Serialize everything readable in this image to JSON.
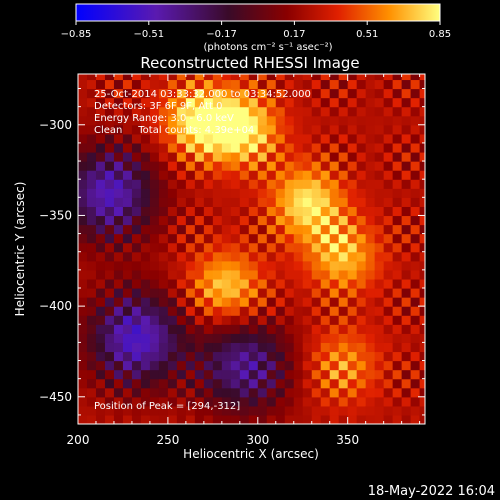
{
  "chart_data": {
    "type": "heatmap",
    "title": "Reconstructed RHESSI Image",
    "xlabel": "Heliocentric X (arcsec)",
    "ylabel": "Heliocentric Y (arcsec)",
    "xlim": [
      200,
      393
    ],
    "ylim": [
      -465,
      -272
    ],
    "x_ticks": [
      200,
      250,
      300,
      350
    ],
    "y_ticks": [
      -300,
      -350,
      -400,
      -450
    ],
    "x_tick_labels": [
      "200",
      "250",
      "300",
      "350"
    ],
    "y_tick_labels": [
      "−300",
      "−350",
      "−400",
      "−450"
    ],
    "colorbar": {
      "range": [
        -0.85,
        0.85
      ],
      "ticks": [
        -0.85,
        -0.51,
        -0.17,
        0.17,
        0.51,
        0.85
      ],
      "tick_labels": [
        "−0.85",
        "−0.51",
        "−0.17",
        "0.17",
        "0.51",
        "0.85"
      ],
      "units_label": "(photons cm⁻² s⁻¹ asec⁻²)"
    },
    "annotations": [
      "25-Oct-2014 03:33:32.000 to 03:34:52.000",
      "Detectors: 3F 6F 9F, Att 0",
      "Energy Range: 3.0 - 6.0 keV",
      "Clean     Total counts: 4.39e+04"
    ],
    "peak_label": "Position of Peak = [294,-312]",
    "peak_position": [
      294,
      -312
    ],
    "bright_sources": [
      {
        "x": 265,
        "y": -300,
        "level": 0.85
      },
      {
        "x": 290,
        "y": -305,
        "level": 0.8
      },
      {
        "x": 325,
        "y": -345,
        "level": 0.8
      },
      {
        "x": 345,
        "y": -375,
        "level": 0.7
      },
      {
        "x": 280,
        "y": -392,
        "level": 0.75
      },
      {
        "x": 345,
        "y": -435,
        "level": 0.6
      }
    ],
    "dim_regions": [
      {
        "x": 215,
        "y": -340,
        "level": -0.5
      },
      {
        "x": 230,
        "y": -420,
        "level": -0.55
      },
      {
        "x": 290,
        "y": -435,
        "level": -0.4
      }
    ]
  },
  "footer": {
    "timestamp": "18-May-2022 16:04"
  }
}
